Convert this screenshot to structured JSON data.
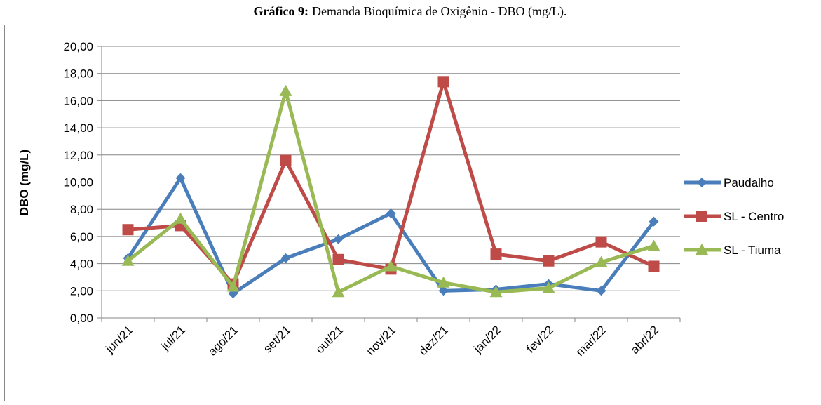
{
  "chart_data": {
    "type": "line",
    "title_label": "Gráfico 9:",
    "title": "Demanda Bioquímica de Oxigênio - DBO  (mg/L).",
    "y_label": "DBO (mg/L)",
    "categories": [
      "jun/21",
      "jul/21",
      "ago/21",
      "set/21",
      "out/21",
      "nov/21",
      "dez/21",
      "jan/22",
      "fev/22",
      "mar/22",
      "abr/22"
    ],
    "series": [
      {
        "name": "Paudalho",
        "color": "#4a7ebb",
        "marker": "diamond",
        "values": [
          4.4,
          10.3,
          1.8,
          4.4,
          5.8,
          7.7,
          2.0,
          2.1,
          2.5,
          2.0,
          7.1
        ]
      },
      {
        "name": "SL - Centro",
        "color": "#be4b48",
        "marker": "square",
        "values": [
          6.5,
          6.8,
          2.5,
          11.6,
          4.3,
          3.6,
          17.4,
          4.7,
          4.2,
          5.6,
          3.8
        ]
      },
      {
        "name": "SL - Tiuma",
        "color": "#98b954",
        "marker": "triangle",
        "values": [
          4.2,
          7.3,
          2.3,
          16.7,
          1.9,
          3.8,
          2.6,
          1.9,
          2.2,
          4.1,
          5.3
        ]
      }
    ],
    "ylim": [
      0,
      20
    ],
    "yticks": [
      {
        "value": 0,
        "label": "0,00"
      },
      {
        "value": 2,
        "label": "2,00"
      },
      {
        "value": 4,
        "label": "4,00"
      },
      {
        "value": 6,
        "label": "6,00"
      },
      {
        "value": 8,
        "label": "8,00"
      },
      {
        "value": 10,
        "label": "10,00"
      },
      {
        "value": 12,
        "label": "12,00"
      },
      {
        "value": 14,
        "label": "14,00"
      },
      {
        "value": 16,
        "label": "16,00"
      },
      {
        "value": 18,
        "label": "18,00"
      },
      {
        "value": 20,
        "label": "20,00"
      }
    ],
    "grid": true,
    "legend": "right"
  }
}
